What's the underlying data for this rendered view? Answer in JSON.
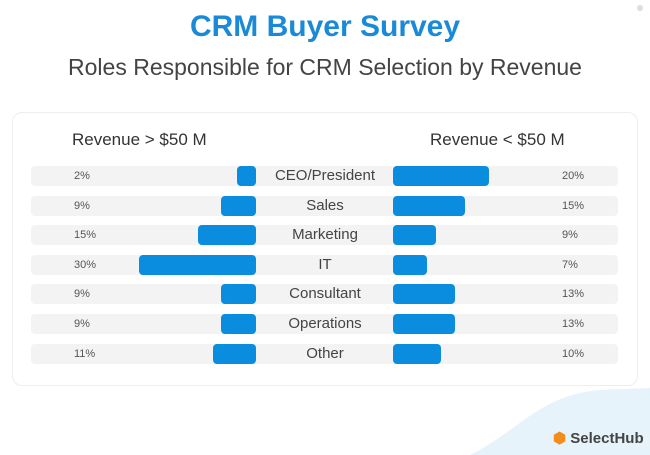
{
  "chart_data": {
    "type": "bar",
    "title": "CRM Buyer Survey",
    "subtitle": "Roles Responsible for CRM Selection by Revenue",
    "categories": [
      "CEO/President",
      "Sales",
      "Marketing",
      "IT",
      "Consultant",
      "Operations",
      "Other"
    ],
    "series": [
      {
        "name": "Revenue  > $50 M",
        "values": [
          2,
          9,
          15,
          30,
          9,
          9,
          11
        ]
      },
      {
        "name": "Revenue  < $50 M",
        "values": [
          20,
          15,
          9,
          7,
          13,
          13,
          10
        ]
      }
    ],
    "unit": "%",
    "bar_color": "#0a8ddf"
  },
  "brand": "SelectHub"
}
